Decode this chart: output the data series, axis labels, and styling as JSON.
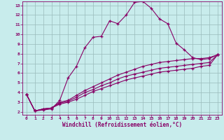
{
  "xlabel": "Windchill (Refroidissement éolien,°C)",
  "background_color": "#c8ecec",
  "line_color": "#880066",
  "grid_color": "#99bbbb",
  "xlim": [
    -0.5,
    23.5
  ],
  "ylim": [
    1.7,
    13.4
  ],
  "xticks": [
    0,
    1,
    2,
    3,
    4,
    5,
    6,
    7,
    8,
    9,
    10,
    11,
    12,
    13,
    14,
    15,
    16,
    17,
    18,
    19,
    20,
    21,
    22,
    23
  ],
  "yticks": [
    2,
    3,
    4,
    5,
    6,
    7,
    8,
    9,
    10,
    11,
    12,
    13
  ],
  "line1_x": [
    0,
    1,
    2,
    3,
    4,
    5,
    6,
    7,
    8,
    9,
    10,
    11,
    12,
    13,
    14,
    15,
    16,
    17,
    18,
    19,
    20,
    21,
    22,
    23
  ],
  "line1_y": [
    3.8,
    2.1,
    2.2,
    2.3,
    3.2,
    5.5,
    6.7,
    8.6,
    9.7,
    9.8,
    11.4,
    11.1,
    12.0,
    13.3,
    13.4,
    12.7,
    11.6,
    11.1,
    9.1,
    8.4,
    7.6,
    7.4,
    7.5,
    7.9
  ],
  "line2_x": [
    0,
    1,
    2,
    3,
    4,
    5,
    6,
    7,
    8,
    9,
    10,
    11,
    12,
    13,
    14,
    15,
    16,
    17,
    18,
    19,
    20,
    21,
    22,
    23
  ],
  "line2_y": [
    3.8,
    2.1,
    2.3,
    2.4,
    3.0,
    3.2,
    3.7,
    4.2,
    4.6,
    5.0,
    5.4,
    5.8,
    6.1,
    6.4,
    6.7,
    6.9,
    7.1,
    7.2,
    7.3,
    7.4,
    7.5,
    7.5,
    7.6,
    7.9
  ],
  "line3_x": [
    0,
    1,
    2,
    3,
    4,
    5,
    6,
    7,
    8,
    9,
    10,
    11,
    12,
    13,
    14,
    15,
    16,
    17,
    18,
    19,
    20,
    21,
    22,
    23
  ],
  "line3_y": [
    3.8,
    2.1,
    2.3,
    2.4,
    2.9,
    3.1,
    3.5,
    4.0,
    4.3,
    4.7,
    5.0,
    5.4,
    5.7,
    5.9,
    6.1,
    6.3,
    6.5,
    6.6,
    6.7,
    6.8,
    6.9,
    7.0,
    7.1,
    7.9
  ],
  "line4_x": [
    0,
    1,
    2,
    3,
    4,
    5,
    6,
    7,
    8,
    9,
    10,
    11,
    12,
    13,
    14,
    15,
    16,
    17,
    18,
    19,
    20,
    21,
    22,
    23
  ],
  "line4_y": [
    3.8,
    2.1,
    2.3,
    2.4,
    2.8,
    3.0,
    3.3,
    3.7,
    4.1,
    4.4,
    4.7,
    5.0,
    5.3,
    5.5,
    5.7,
    5.9,
    6.1,
    6.2,
    6.3,
    6.4,
    6.5,
    6.7,
    6.8,
    7.9
  ]
}
